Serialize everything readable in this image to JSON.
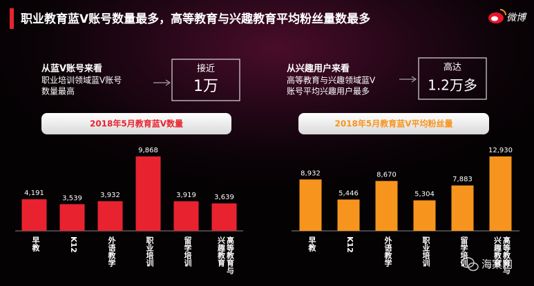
{
  "header": {
    "title": "职业教育蓝V账号数量最多，高等教育与兴趣教育平均粉丝量数最多",
    "logo": "微博"
  },
  "panels": [
    {
      "heading": "从蓝V账号来看",
      "desc": [
        "职业培训领域蓝V账号",
        "数量最高"
      ],
      "box_top": "接近",
      "box_main": "1万"
    },
    {
      "heading": "从兴趣用户来看",
      "desc": [
        "高等教育与兴趣领域蓝V",
        "账号平均兴趣用户最多"
      ],
      "box_top": "高达",
      "box_main": "1.2万多"
    }
  ],
  "chart_data": [
    {
      "type": "bar",
      "title": "2018年5月教育蓝V数量",
      "categories": [
        "早教",
        "K12",
        "外语教学",
        "职业培训",
        "留学培训",
        "高等教育与兴趣教育"
      ],
      "values": [
        4191,
        3539,
        3932,
        9868,
        3919,
        3639
      ],
      "value_labels": [
        "4,191",
        "3,539",
        "3,932",
        "9,868",
        "3,919",
        "3,639"
      ],
      "color": "#e8232f"
    },
    {
      "type": "bar",
      "title": "2018年5月教育蓝V平均粉丝量",
      "categories": [
        "早教",
        "K12",
        "外语教学",
        "职业培训",
        "留学培训",
        "高等教育与兴趣教育"
      ],
      "values": [
        8932,
        5446,
        8670,
        5304,
        7883,
        12930
      ],
      "value_labels": [
        "8,932",
        "5,446",
        "8,670",
        "5,304",
        "7,883",
        "12,930"
      ],
      "color": "#f7941d"
    }
  ],
  "watermark": "海案网"
}
